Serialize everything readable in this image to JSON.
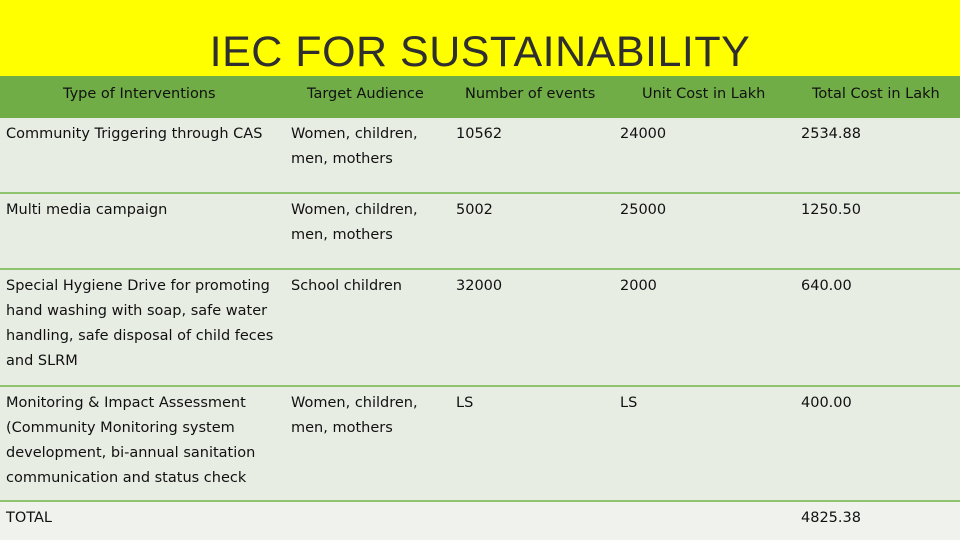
{
  "title": "IEC FOR SUSTAINABILITY",
  "columns": [
    "Type of Interventions",
    "Target Audience",
    "Number of events",
    "Unit Cost in Lakh",
    "Total Cost in Lakh"
  ],
  "rows": [
    {
      "intervention": "Community Triggering through CAS",
      "audience_l1": "Women, children,",
      "audience_l2": "men, mothers",
      "events": "10562",
      "unit_cost": "24000",
      "total_cost": "2534.88"
    },
    {
      "intervention": "Multi media campaign",
      "audience_l1": "Women, children,",
      "audience_l2": "men, mothers",
      "events": "5002",
      "unit_cost": "25000",
      "total_cost": "1250.50"
    },
    {
      "intervention_l1": "Special Hygiene Drive for promoting",
      "intervention_l2": "hand washing with soap, safe water",
      "intervention_l3": "handling, safe disposal of child feces",
      "intervention_l4": "and SLRM",
      "audience_l1": "School children",
      "events": "32000",
      "unit_cost": "2000",
      "total_cost": "640.00"
    },
    {
      "intervention_l1": "Monitoring & Impact Assessment",
      "intervention_l2": "(Community Monitoring system",
      "intervention_l3": "development, bi-annual sanitation",
      "intervention_l4": "communication and status check",
      "audience_l1": "Women, children,",
      "audience_l2": "men, mothers",
      "events": "LS",
      "unit_cost": "LS",
      "total_cost": "400.00"
    }
  ],
  "total": {
    "label": "TOTAL",
    "value": "4825.38"
  }
}
